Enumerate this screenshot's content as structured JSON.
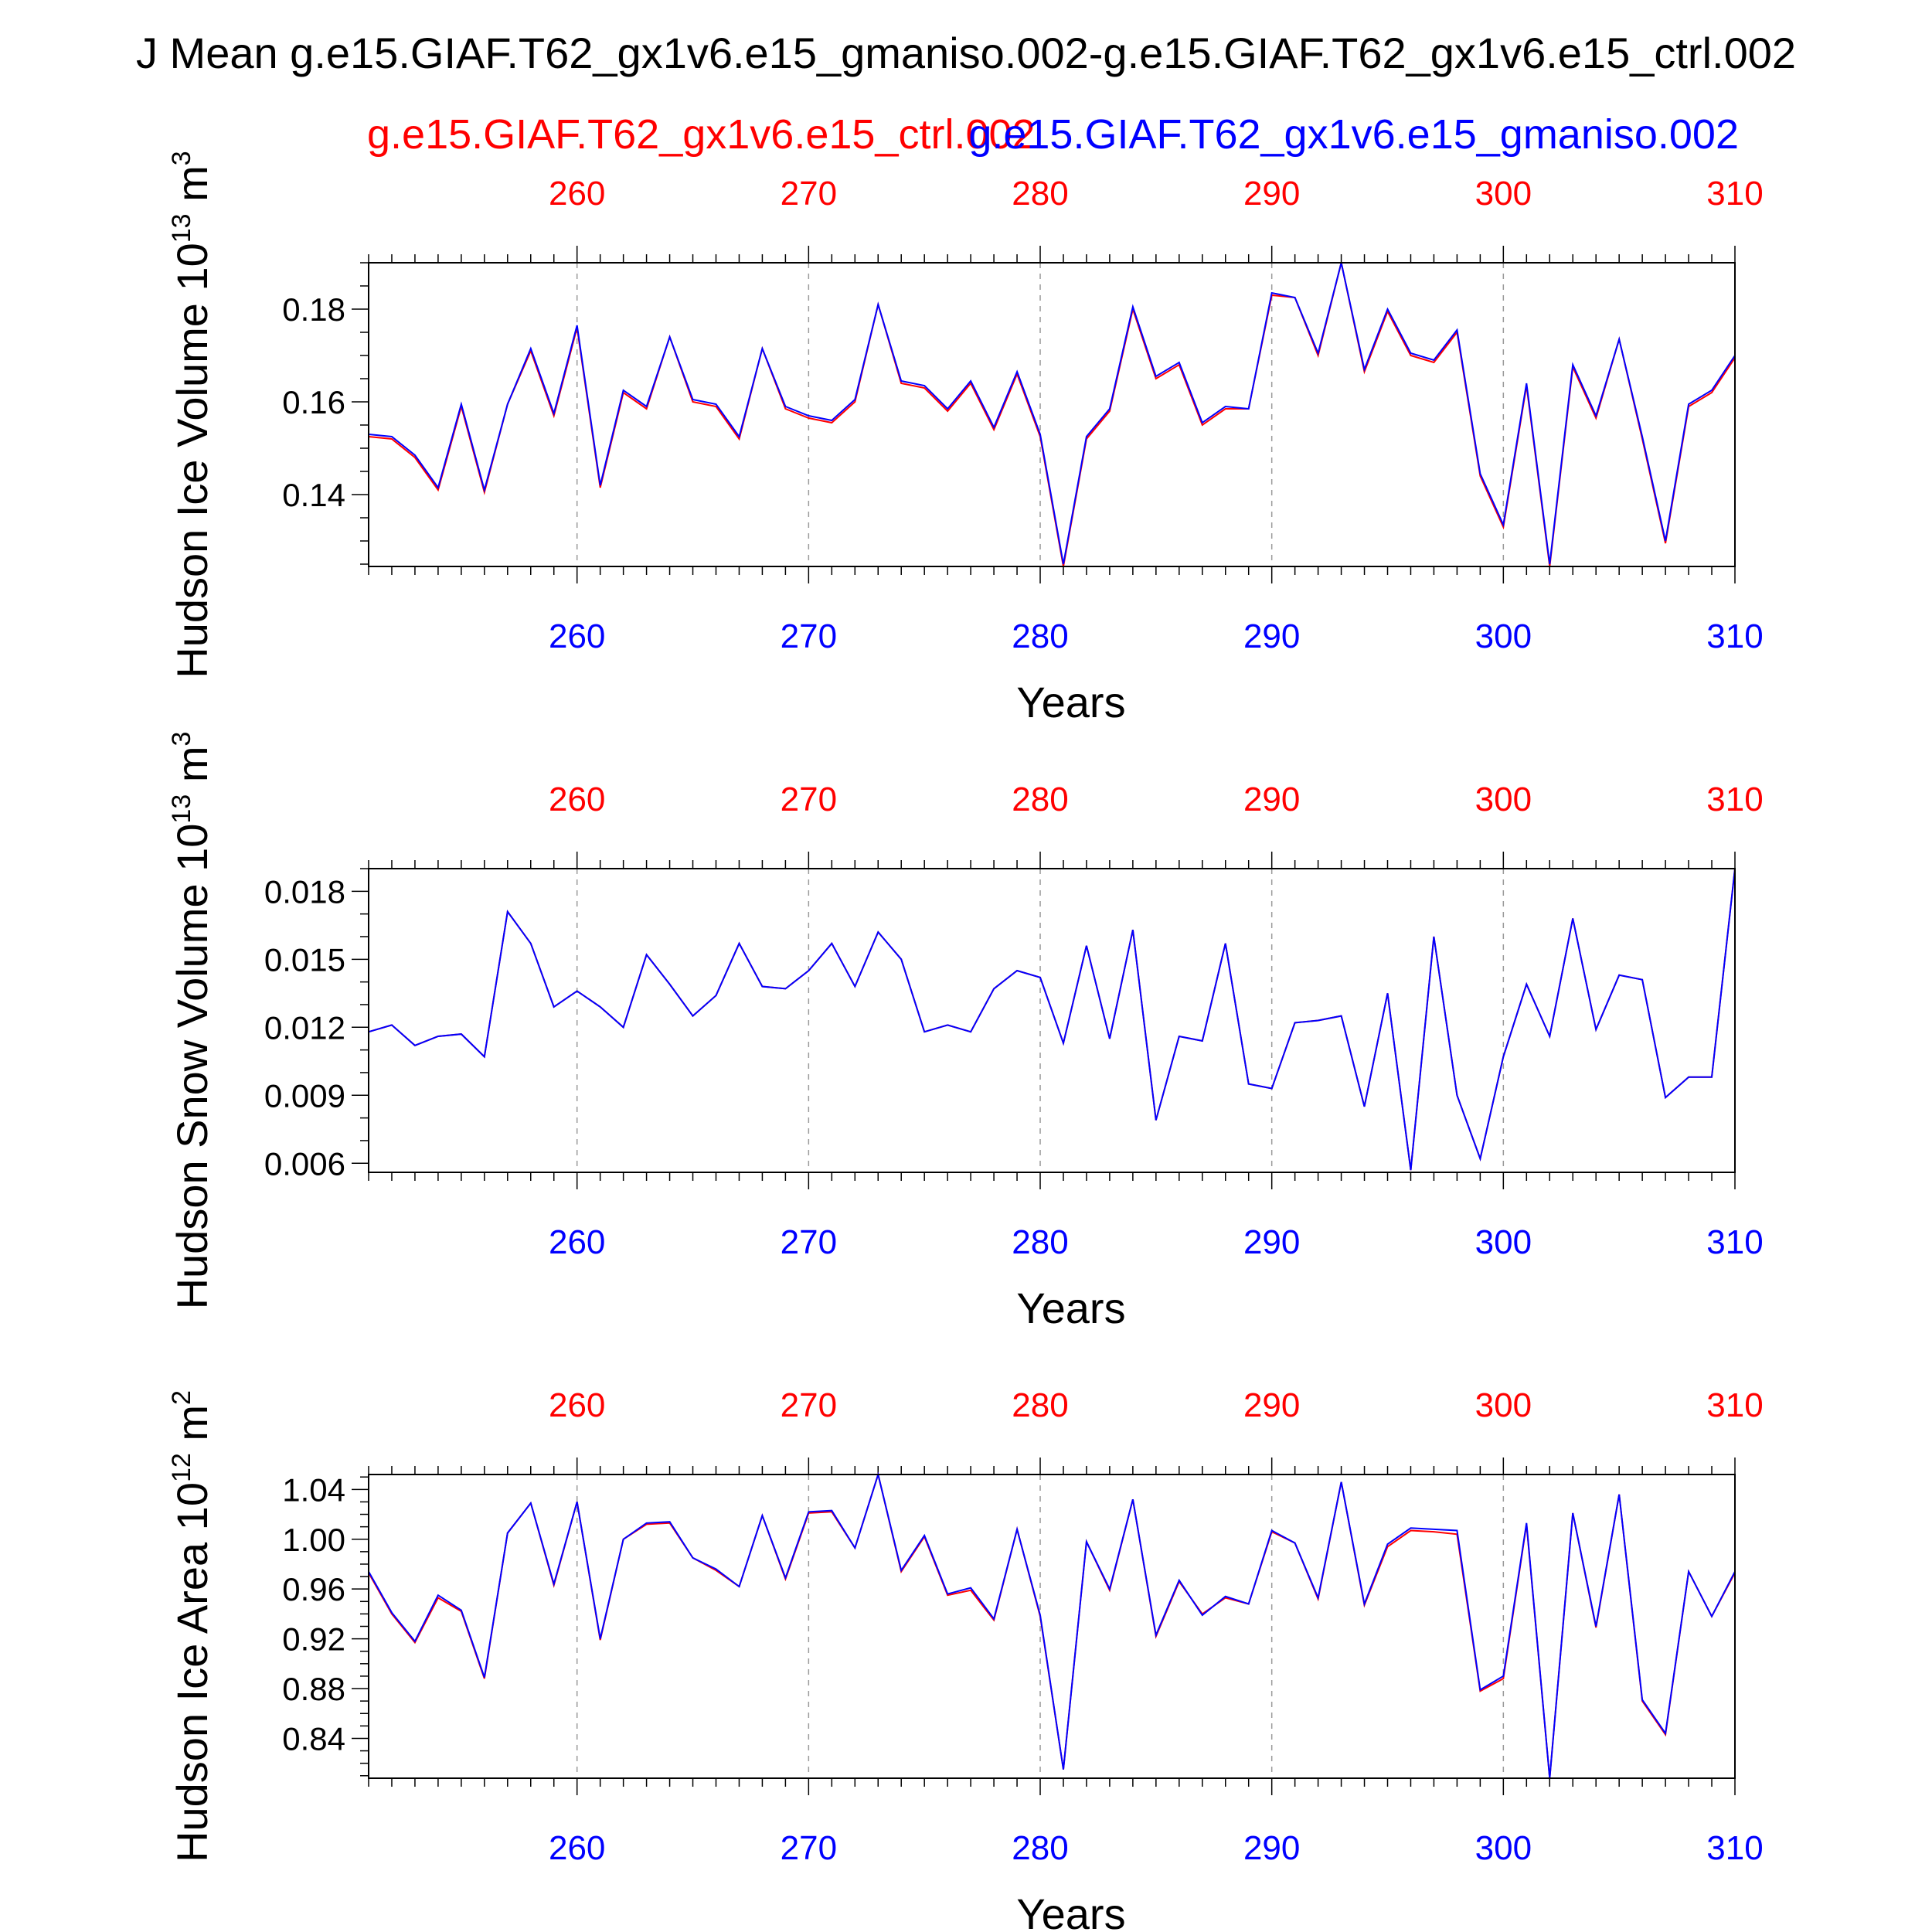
{
  "title": "J Mean g.e15.GIAF.T62_gx1v6.e15_gmaniso.002-g.e15.GIAF.T62_gx1v6.e15_ctrl.002",
  "legend": {
    "red_label": "g.e15.GIAF.T62_gx1v6.e15_ctrl.002",
    "blue_label": "g.e15.GIAF.T62_gx1v6.e15_gmaniso.002"
  },
  "colors": {
    "ctrl": "#ff0000",
    "gmaniso": "#0000ff",
    "axis": "#000000",
    "grid": "#999999"
  },
  "chart_data": [
    {
      "type": "line",
      "ylabel_main": "Hudson Ice Volume 10",
      "ylabel_exp": "13",
      "ylabel_unit": " m",
      "ylabel_unit_exp": "3",
      "xlabel": "Years",
      "xlim": [
        251,
        310
      ],
      "ylim": [
        0.1245,
        0.19
      ],
      "yticks": [
        0.14,
        0.16,
        0.18
      ],
      "ytick_labels": [
        "0.14",
        "0.16",
        "0.18"
      ],
      "yminor": [
        0.125,
        0.13,
        0.135,
        0.145,
        0.15,
        0.155,
        0.165,
        0.17,
        0.175,
        0.185,
        0.19
      ],
      "xticks": [
        260,
        270,
        280,
        290,
        300,
        310
      ],
      "xtick_labels": [
        "260",
        "270",
        "280",
        "290",
        "300",
        "310"
      ],
      "x_start": 251,
      "series": [
        {
          "name": "g.e15.GIAF.T62_gx1v6.e15_ctrl.002",
          "color": "#ff0000",
          "values": [
            0.1525,
            0.152,
            0.148,
            0.141,
            0.159,
            0.1405,
            0.1595,
            0.171,
            0.157,
            0.176,
            0.1415,
            0.162,
            0.1585,
            0.174,
            0.16,
            0.159,
            0.152,
            0.1715,
            0.1585,
            0.1565,
            0.1555,
            0.16,
            0.181,
            0.164,
            0.163,
            0.158,
            0.164,
            0.154,
            0.166,
            0.1525,
            0.1245,
            0.152,
            0.158,
            0.18,
            0.165,
            0.168,
            0.155,
            0.1585,
            0.1585,
            0.183,
            0.1825,
            0.17,
            0.19,
            0.1665,
            0.1795,
            0.17,
            0.1685,
            0.175,
            0.144,
            0.133,
            0.1635,
            0.1245,
            0.1675,
            0.1565,
            0.1735,
            0.152,
            0.1295,
            0.159,
            0.162,
            0.1695
          ]
        },
        {
          "name": "g.e15.GIAF.T62_gx1v6.e15_gmaniso.002",
          "color": "#0000ff",
          "values": [
            0.153,
            0.1525,
            0.1485,
            0.1415,
            0.1595,
            0.141,
            0.1595,
            0.1715,
            0.1575,
            0.1765,
            0.142,
            0.1625,
            0.159,
            0.174,
            0.1605,
            0.1595,
            0.1525,
            0.1715,
            0.159,
            0.157,
            0.156,
            0.1605,
            0.181,
            0.1645,
            0.1635,
            0.1585,
            0.1645,
            0.1545,
            0.1665,
            0.153,
            0.125,
            0.1525,
            0.1585,
            0.1805,
            0.1655,
            0.1685,
            0.1555,
            0.159,
            0.1585,
            0.1835,
            0.1825,
            0.1705,
            0.19,
            0.167,
            0.18,
            0.1705,
            0.169,
            0.1755,
            0.1445,
            0.1335,
            0.164,
            0.125,
            0.168,
            0.157,
            0.1735,
            0.1525,
            0.13,
            0.1595,
            0.1625,
            0.17
          ]
        }
      ]
    },
    {
      "type": "line",
      "ylabel_main": "Hudson Snow Volume 10",
      "ylabel_exp": "13",
      "ylabel_unit": " m",
      "ylabel_unit_exp": "3",
      "xlabel": "Years",
      "xlim": [
        251,
        310
      ],
      "ylim": [
        0.0056,
        0.019
      ],
      "yticks": [
        0.006,
        0.009,
        0.012,
        0.015,
        0.018
      ],
      "ytick_labels": [
        "0.006",
        "0.009",
        "0.012",
        "0.015",
        "0.018"
      ],
      "yminor": [
        0.007,
        0.008,
        0.01,
        0.011,
        0.013,
        0.014,
        0.016,
        0.017,
        0.019
      ],
      "xticks": [
        260,
        270,
        280,
        290,
        300,
        310
      ],
      "xtick_labels": [
        "260",
        "270",
        "280",
        "290",
        "300",
        "310"
      ],
      "x_start": 251,
      "series": [
        {
          "name": "g.e15.GIAF.T62_gx1v6.e15_ctrl.002",
          "color": "#ff0000",
          "values": [
            0.0118,
            0.0121,
            0.0112,
            0.0116,
            0.0117,
            0.0107,
            0.0171,
            0.0157,
            0.0129,
            0.0136,
            0.0129,
            0.012,
            0.0152,
            0.0139,
            0.0125,
            0.0134,
            0.0157,
            0.0138,
            0.0137,
            0.0145,
            0.0157,
            0.0138,
            0.0162,
            0.015,
            0.0118,
            0.0121,
            0.0118,
            0.0137,
            0.0145,
            0.0142,
            0.0113,
            0.0156,
            0.0115,
            0.0163,
            0.0079,
            0.0116,
            0.0114,
            0.0157,
            0.0095,
            0.0093,
            0.0122,
            0.0123,
            0.0125,
            0.0085,
            0.0135,
            0.0057,
            0.016,
            0.009,
            0.0062,
            0.0107,
            0.0139,
            0.0116,
            0.0168,
            0.0119,
            0.0143,
            0.0141,
            0.0089,
            0.0098,
            0.0098,
            0.019
          ]
        },
        {
          "name": "g.e15.GIAF.T62_gx1v6.e15_gmaniso.002",
          "color": "#0000ff",
          "values": [
            0.0118,
            0.0121,
            0.0112,
            0.0116,
            0.0117,
            0.0107,
            0.0171,
            0.0157,
            0.0129,
            0.0136,
            0.0129,
            0.012,
            0.0152,
            0.0139,
            0.0125,
            0.0134,
            0.0157,
            0.0138,
            0.0137,
            0.0145,
            0.0157,
            0.0138,
            0.0162,
            0.015,
            0.0118,
            0.0121,
            0.0118,
            0.0137,
            0.0145,
            0.0142,
            0.0113,
            0.0156,
            0.0115,
            0.0163,
            0.0079,
            0.0116,
            0.0114,
            0.0157,
            0.0095,
            0.0093,
            0.0122,
            0.0123,
            0.0125,
            0.0085,
            0.0135,
            0.0057,
            0.016,
            0.009,
            0.0062,
            0.0107,
            0.0139,
            0.0116,
            0.0168,
            0.0119,
            0.0143,
            0.0141,
            0.0089,
            0.0098,
            0.0098,
            0.019
          ]
        }
      ]
    },
    {
      "type": "line",
      "ylabel_main": "Hudson Ice Area 10",
      "ylabel_exp": "12",
      "ylabel_unit": " m",
      "ylabel_unit_exp": "2",
      "xlabel": "Years",
      "xlim": [
        251,
        310
      ],
      "ylim": [
        0.808,
        1.052
      ],
      "yticks": [
        0.84,
        0.88,
        0.92,
        0.96,
        1.0,
        1.04
      ],
      "ytick_labels": [
        "0.84",
        "0.88",
        "0.92",
        "0.96",
        "1.00",
        "1.04"
      ],
      "yminor": [
        0.81,
        0.82,
        0.83,
        0.85,
        0.86,
        0.87,
        0.89,
        0.9,
        0.91,
        0.93,
        0.94,
        0.95,
        0.97,
        0.98,
        0.99,
        1.01,
        1.02,
        1.03,
        1.05
      ],
      "xticks": [
        260,
        270,
        280,
        290,
        300,
        310
      ],
      "xtick_labels": [
        "260",
        "270",
        "280",
        "290",
        "300",
        "310"
      ],
      "x_start": 251,
      "series": [
        {
          "name": "g.e15.GIAF.T62_gx1v6.e15_ctrl.002",
          "color": "#ff0000",
          "values": [
            0.973,
            0.94,
            0.917,
            0.953,
            0.942,
            0.888,
            1.005,
            1.029,
            0.963,
            1.03,
            0.919,
            1.0,
            1.012,
            1.013,
            0.985,
            0.975,
            0.962,
            1.019,
            0.968,
            1.021,
            1.022,
            0.993,
            1.052,
            0.974,
            1.002,
            0.955,
            0.959,
            0.935,
            1.008,
            0.938,
            0.815,
            0.998,
            0.959,
            1.032,
            0.922,
            0.966,
            0.94,
            0.953,
            0.948,
            1.006,
            0.997,
            0.952,
            1.046,
            0.947,
            0.994,
            1.007,
            1.006,
            1.004,
            0.878,
            0.888,
            1.012,
            0.808,
            1.021,
            0.929,
            1.036,
            0.87,
            0.843,
            0.974,
            0.938,
            0.973
          ]
        },
        {
          "name": "g.e15.GIAF.T62_gx1v6.e15_gmaniso.002",
          "color": "#0000ff",
          "values": [
            0.974,
            0.941,
            0.918,
            0.955,
            0.943,
            0.889,
            1.005,
            1.029,
            0.964,
            1.03,
            0.92,
            1.0,
            1.013,
            1.014,
            0.985,
            0.976,
            0.962,
            1.019,
            0.969,
            1.022,
            1.023,
            0.993,
            1.052,
            0.975,
            1.003,
            0.956,
            0.961,
            0.936,
            1.008,
            0.939,
            0.815,
            0.998,
            0.96,
            1.032,
            0.923,
            0.967,
            0.939,
            0.954,
            0.948,
            1.007,
            0.997,
            0.953,
            1.046,
            0.948,
            0.996,
            1.009,
            1.008,
            1.007,
            0.879,
            0.89,
            1.013,
            0.808,
            1.021,
            0.93,
            1.036,
            0.871,
            0.844,
            0.974,
            0.938,
            0.974
          ]
        }
      ]
    }
  ]
}
